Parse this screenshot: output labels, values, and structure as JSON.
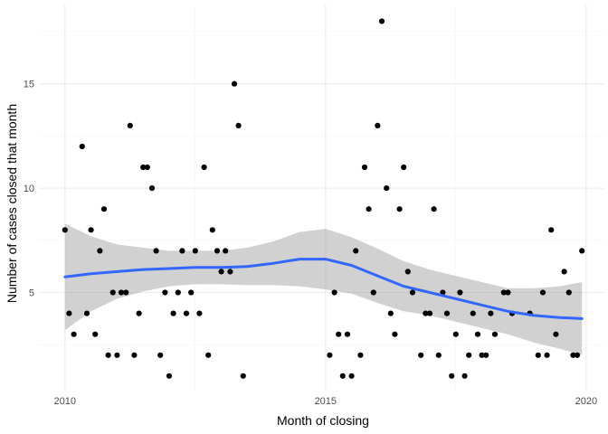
{
  "chart_data": {
    "type": "scatter",
    "title": "",
    "xlabel": "Month of closing",
    "ylabel": "Number of cases closed that month",
    "xlim": [
      2009.5,
      2020.35
    ],
    "ylim": [
      0.3,
      18.8
    ],
    "x_ticks": [
      2010,
      2015,
      2020
    ],
    "x_tick_labels": [
      "2010",
      "2015",
      "2020"
    ],
    "y_ticks": [
      5,
      10,
      15
    ],
    "y_tick_labels": [
      "5",
      "10",
      "15"
    ],
    "grid": true,
    "legend": "none",
    "series": [
      {
        "values": [
          [
            2010.0,
            8
          ],
          [
            2010.08,
            4
          ],
          [
            2010.17,
            3
          ],
          [
            2010.33,
            12
          ],
          [
            2010.42,
            4
          ],
          [
            2010.5,
            8
          ],
          [
            2010.58,
            3
          ],
          [
            2010.67,
            7
          ],
          [
            2010.75,
            9
          ],
          [
            2010.83,
            2
          ],
          [
            2010.92,
            5
          ],
          [
            2011.0,
            2
          ],
          [
            2011.08,
            5
          ],
          [
            2011.17,
            5
          ],
          [
            2011.25,
            13
          ],
          [
            2011.33,
            2
          ],
          [
            2011.42,
            4
          ],
          [
            2011.5,
            11
          ],
          [
            2011.58,
            11
          ],
          [
            2011.67,
            10
          ],
          [
            2011.75,
            7
          ],
          [
            2011.83,
            2
          ],
          [
            2011.92,
            5
          ],
          [
            2012.0,
            1
          ],
          [
            2012.08,
            4
          ],
          [
            2012.17,
            5
          ],
          [
            2012.25,
            7
          ],
          [
            2012.33,
            4
          ],
          [
            2012.42,
            5
          ],
          [
            2012.5,
            7
          ],
          [
            2012.58,
            4
          ],
          [
            2012.67,
            11
          ],
          [
            2012.75,
            2
          ],
          [
            2012.83,
            8
          ],
          [
            2012.92,
            7
          ],
          [
            2013.0,
            6
          ],
          [
            2013.08,
            7
          ],
          [
            2013.17,
            6
          ],
          [
            2013.25,
            15
          ],
          [
            2013.33,
            13
          ],
          [
            2013.42,
            1
          ],
          [
            2015.08,
            2
          ],
          [
            2015.17,
            5
          ],
          [
            2015.25,
            3
          ],
          [
            2015.33,
            1
          ],
          [
            2015.42,
            3
          ],
          [
            2015.5,
            1
          ],
          [
            2015.58,
            7
          ],
          [
            2015.67,
            2
          ],
          [
            2015.75,
            11
          ],
          [
            2015.83,
            9
          ],
          [
            2015.92,
            5
          ],
          [
            2016.0,
            13
          ],
          [
            2016.08,
            18
          ],
          [
            2016.17,
            10
          ],
          [
            2016.25,
            4
          ],
          [
            2016.33,
            3
          ],
          [
            2016.42,
            9
          ],
          [
            2016.5,
            11
          ],
          [
            2016.58,
            6
          ],
          [
            2016.67,
            5
          ],
          [
            2016.83,
            2
          ],
          [
            2016.92,
            4
          ],
          [
            2017.0,
            4
          ],
          [
            2017.08,
            9
          ],
          [
            2017.17,
            2
          ],
          [
            2017.25,
            5
          ],
          [
            2017.33,
            4
          ],
          [
            2017.42,
            1
          ],
          [
            2017.5,
            3
          ],
          [
            2017.58,
            5
          ],
          [
            2017.67,
            1
          ],
          [
            2017.75,
            2
          ],
          [
            2017.83,
            4
          ],
          [
            2017.92,
            3
          ],
          [
            2018.0,
            2
          ],
          [
            2018.08,
            2
          ],
          [
            2018.17,
            4
          ],
          [
            2018.25,
            3
          ],
          [
            2018.42,
            5
          ],
          [
            2018.5,
            5
          ],
          [
            2018.58,
            4
          ],
          [
            2018.92,
            4
          ],
          [
            2019.08,
            2
          ],
          [
            2019.17,
            5
          ],
          [
            2019.25,
            2
          ],
          [
            2019.33,
            8
          ],
          [
            2019.42,
            3
          ],
          [
            2019.58,
            6
          ],
          [
            2019.67,
            5
          ],
          [
            2019.75,
            2
          ],
          [
            2019.83,
            2
          ],
          [
            2019.92,
            7
          ]
        ]
      }
    ],
    "smooth": {
      "x": [
        2010.0,
        2010.5,
        2011.0,
        2011.5,
        2012.0,
        2012.5,
        2013.0,
        2013.5,
        2014.0,
        2014.5,
        2015.0,
        2015.5,
        2016.0,
        2016.5,
        2017.0,
        2017.5,
        2018.0,
        2018.5,
        2019.0,
        2019.5,
        2019.92
      ],
      "y": [
        5.75,
        5.9,
        6.0,
        6.1,
        6.15,
        6.2,
        6.2,
        6.25,
        6.4,
        6.6,
        6.6,
        6.3,
        5.8,
        5.3,
        5.0,
        4.7,
        4.4,
        4.1,
        3.9,
        3.8,
        3.75
      ],
      "lower": [
        3.2,
        4.1,
        4.7,
        5.05,
        5.3,
        5.4,
        5.4,
        5.35,
        5.35,
        5.3,
        5.15,
        4.95,
        4.5,
        4.1,
        3.9,
        3.6,
        3.3,
        3.0,
        2.6,
        2.3,
        2.0
      ],
      "upper": [
        8.3,
        7.7,
        7.3,
        7.15,
        7.0,
        7.0,
        7.0,
        7.15,
        7.45,
        7.9,
        8.05,
        7.65,
        7.1,
        6.5,
        6.1,
        5.8,
        5.5,
        5.2,
        5.2,
        5.3,
        5.5
      ],
      "color": "#3366FF",
      "ribbon_color": "#999999"
    }
  }
}
